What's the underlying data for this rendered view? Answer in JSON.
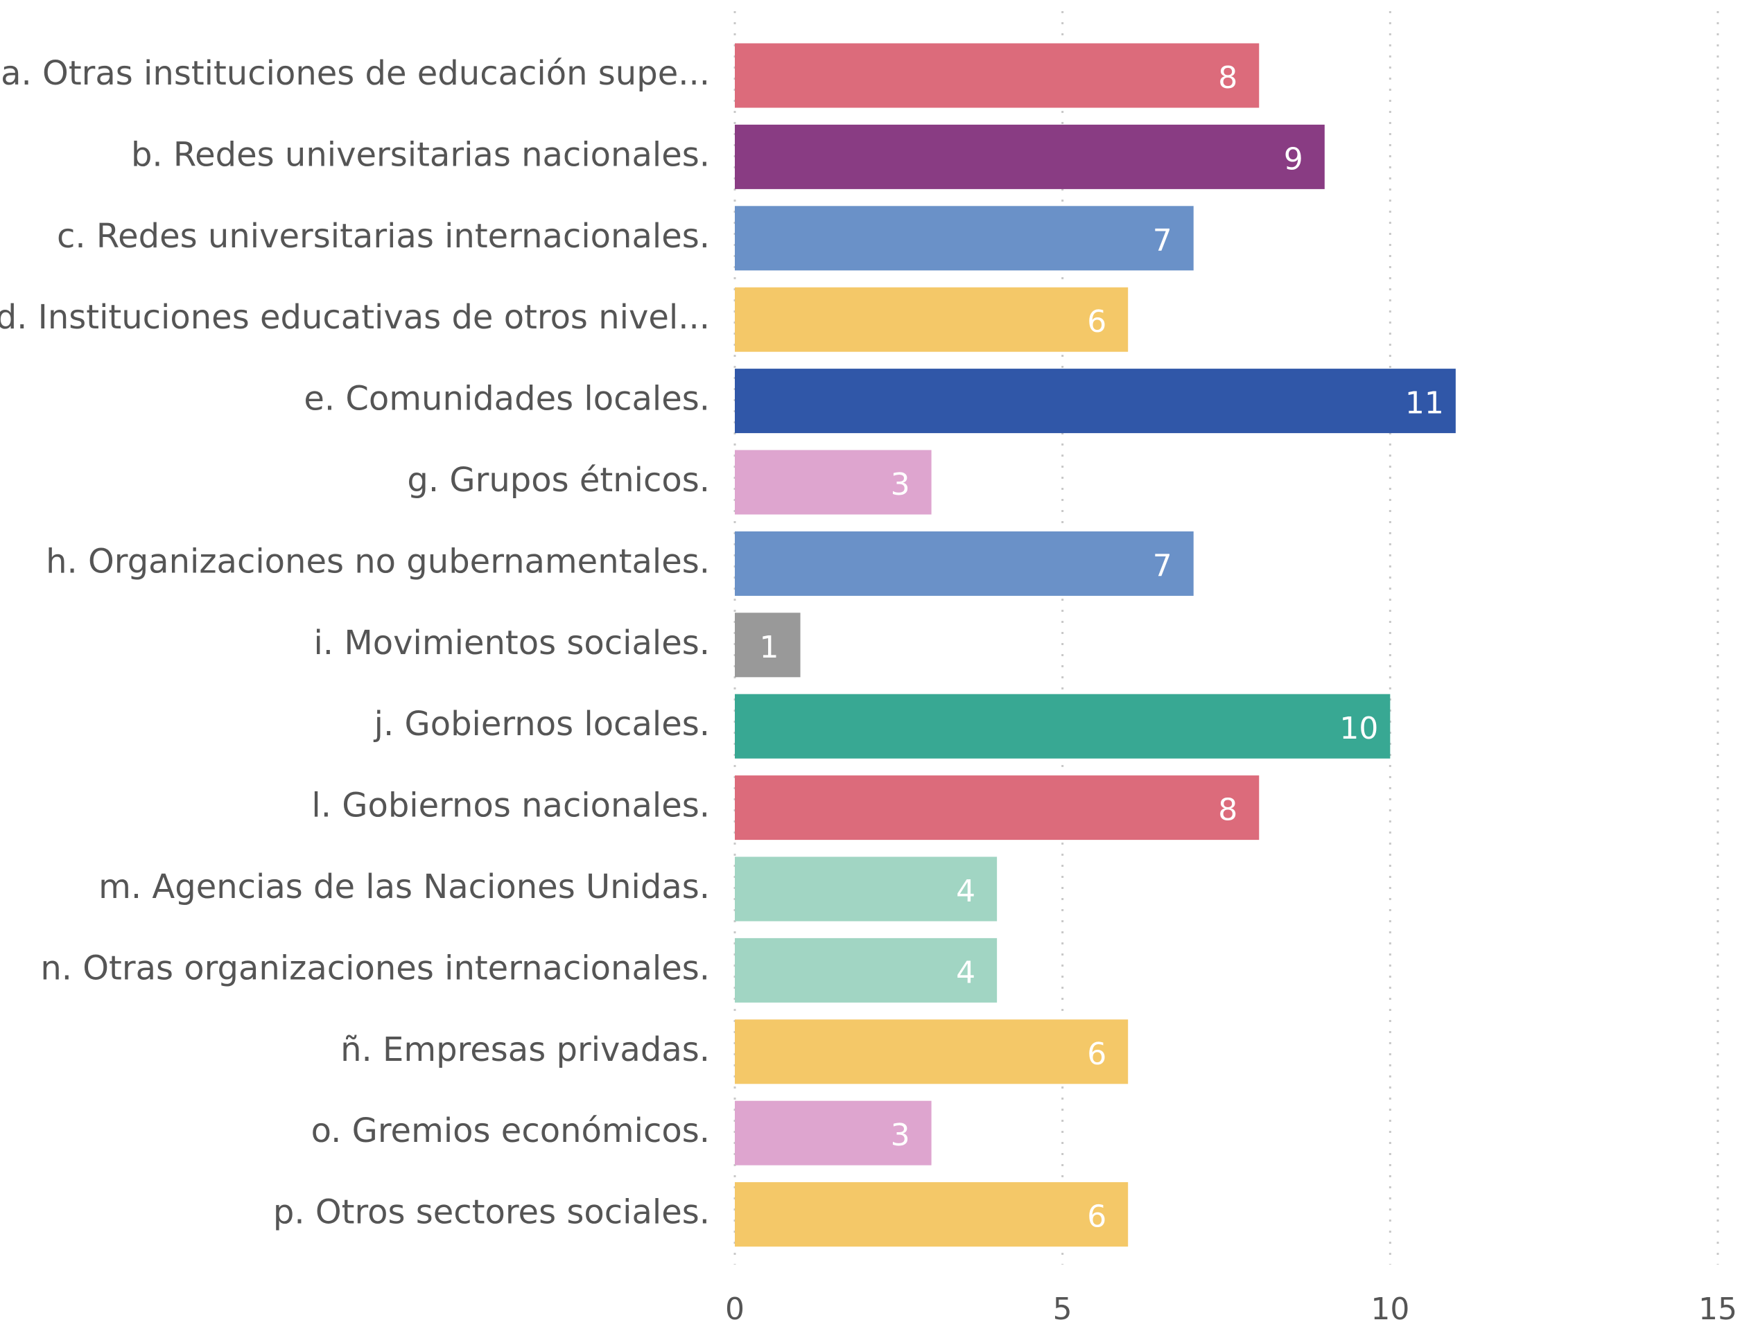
{
  "chart_data": {
    "type": "bar",
    "orientation": "horizontal",
    "categories": [
      "a. Otras instituciones de educación supe...",
      "b. Redes universitarias nacionales.",
      "c. Redes universitarias internacionales.",
      "d. Instituciones educativas de otros nivel...",
      "e. Comunidades locales.",
      "g. Grupos étnicos.",
      "h. Organizaciones no gubernamentales.",
      "i. Movimientos sociales.",
      "j. Gobiernos locales.",
      "l. Gobiernos nacionales.",
      "m. Agencias de las Naciones Unidas.",
      "n. Otras organizaciones internacionales.",
      "ñ. Empresas privadas.",
      "o. Gremios económicos.",
      "p. Otros sectores sociales."
    ],
    "values": [
      8,
      9,
      7,
      6,
      11,
      3,
      7,
      1,
      10,
      8,
      4,
      4,
      6,
      3,
      6
    ],
    "colors": [
      "#dc6b7b",
      "#893c83",
      "#6a91c8",
      "#f4c868",
      "#3057a8",
      "#dea5cf",
      "#6a91c8",
      "#999999",
      "#38a893",
      "#dc6b7b",
      "#a1d5c3",
      "#a1d5c3",
      "#f4c868",
      "#dea5cf",
      "#f4c868"
    ],
    "xlim": [
      0,
      15
    ],
    "xticks": [
      0,
      5,
      10,
      15
    ],
    "grid": true
  }
}
